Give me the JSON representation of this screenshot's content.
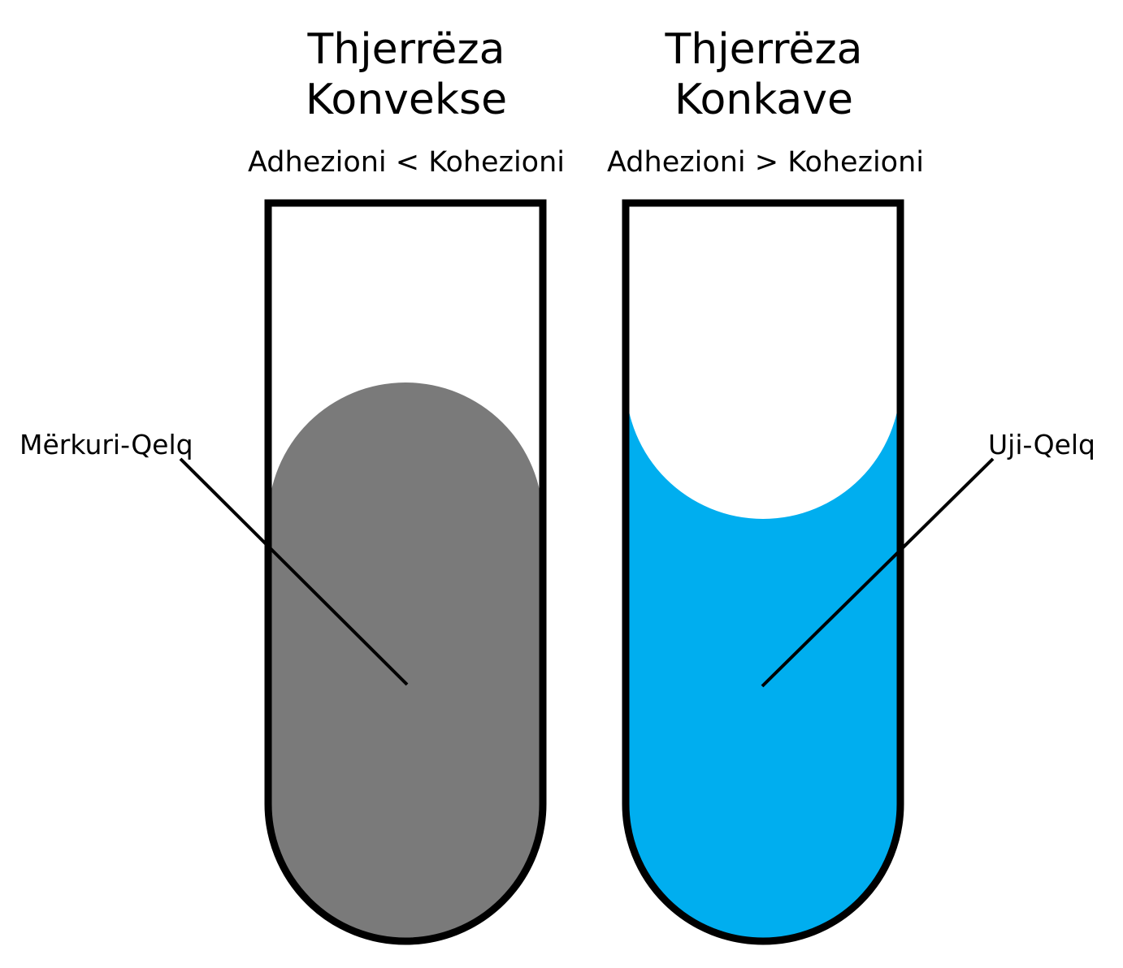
{
  "left_tube": {
    "title_line1": "Thjerrëza",
    "title_line2": "Konvekse",
    "relation": "Adhezioni < Kohezioni",
    "label": "Mërkuri-Qelq",
    "fill_color": "#7a7a7a"
  },
  "right_tube": {
    "title_line1": "Thjerrëza",
    "title_line2": "Konkave",
    "relation": "Adhezioni > Kohezioni",
    "label": "Uji-Qelq",
    "fill_color": "#00aeef"
  },
  "colors": {
    "outline": "#000000",
    "background": "#ffffff"
  }
}
